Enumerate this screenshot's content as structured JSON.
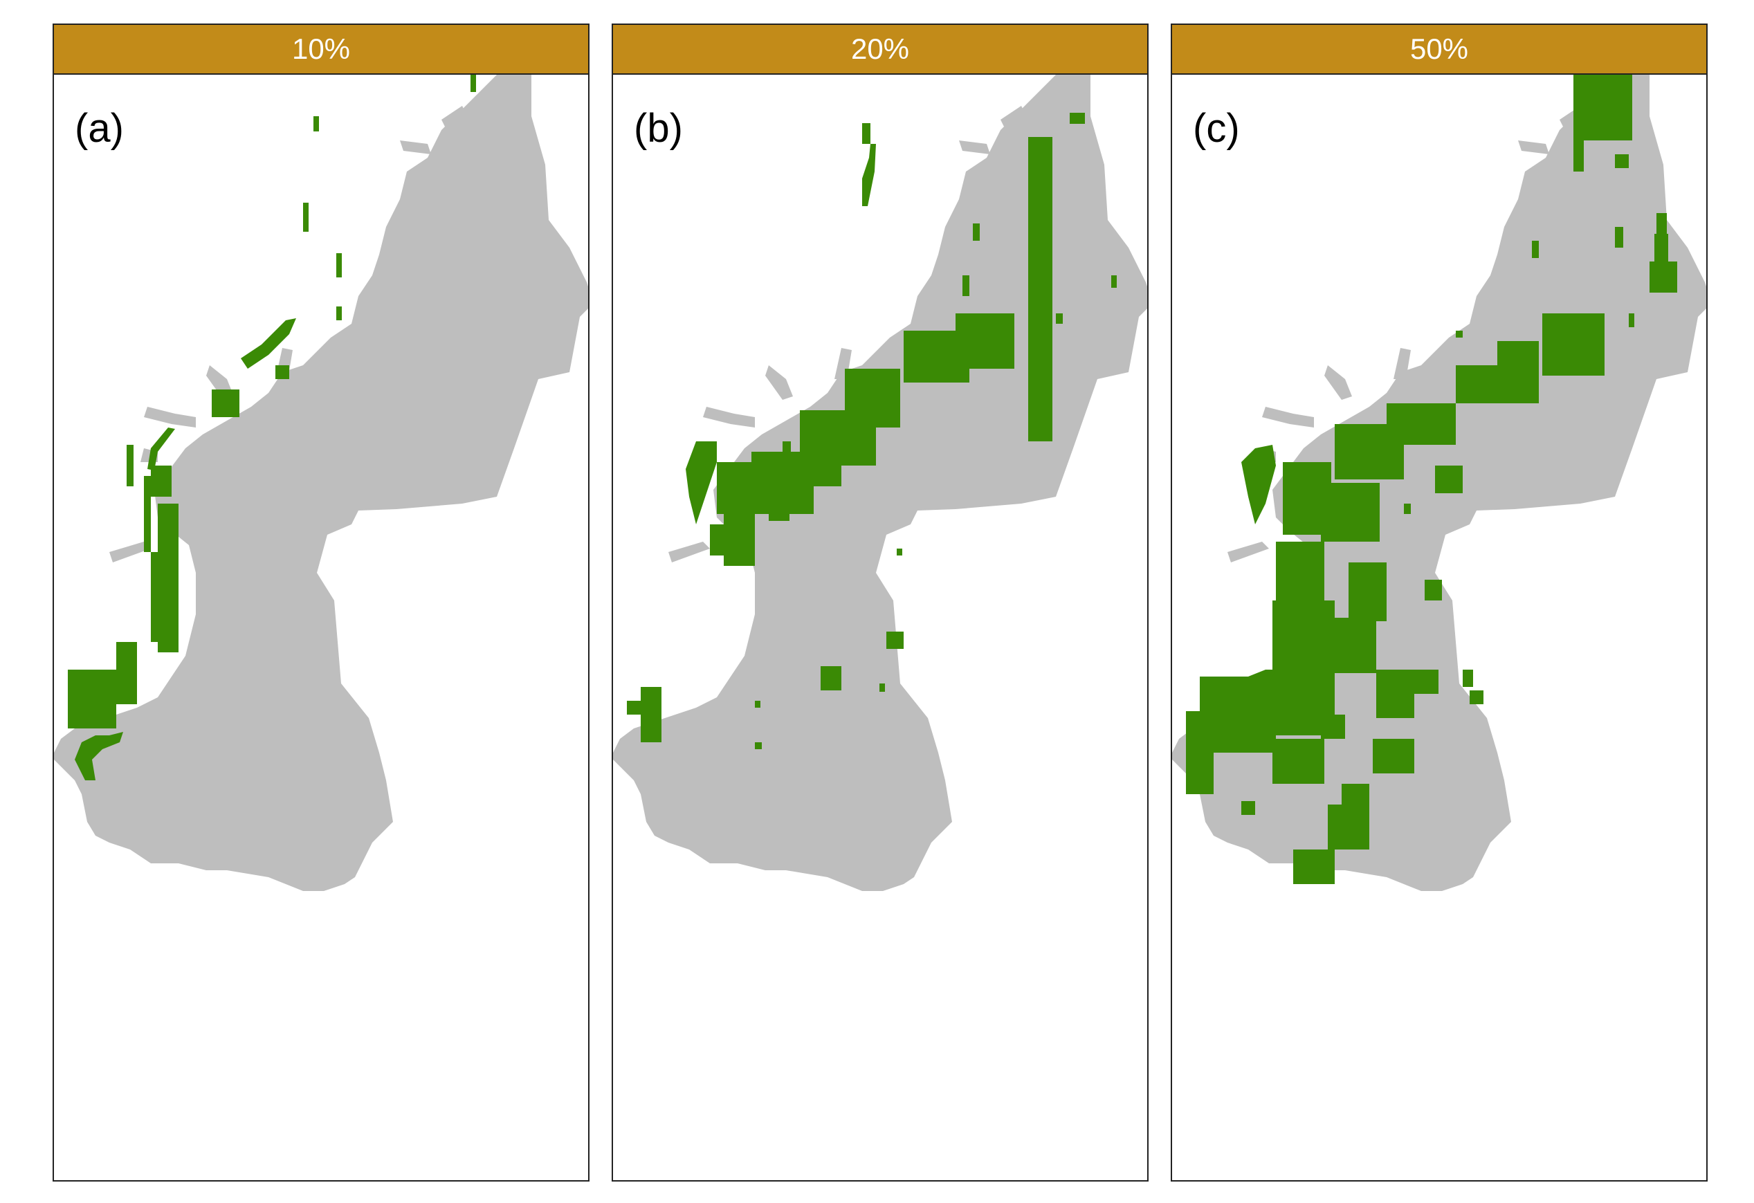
{
  "colors": {
    "strip": "#c28b19",
    "land": "#bebebe",
    "selected": "#3a8a05",
    "frame": "#222222"
  },
  "panels": [
    {
      "strip_label": "10%",
      "tag": "(a)"
    },
    {
      "strip_label": "20%",
      "tag": "(b)"
    },
    {
      "strip_label": "50%",
      "tag": "(c)"
    }
  ]
}
